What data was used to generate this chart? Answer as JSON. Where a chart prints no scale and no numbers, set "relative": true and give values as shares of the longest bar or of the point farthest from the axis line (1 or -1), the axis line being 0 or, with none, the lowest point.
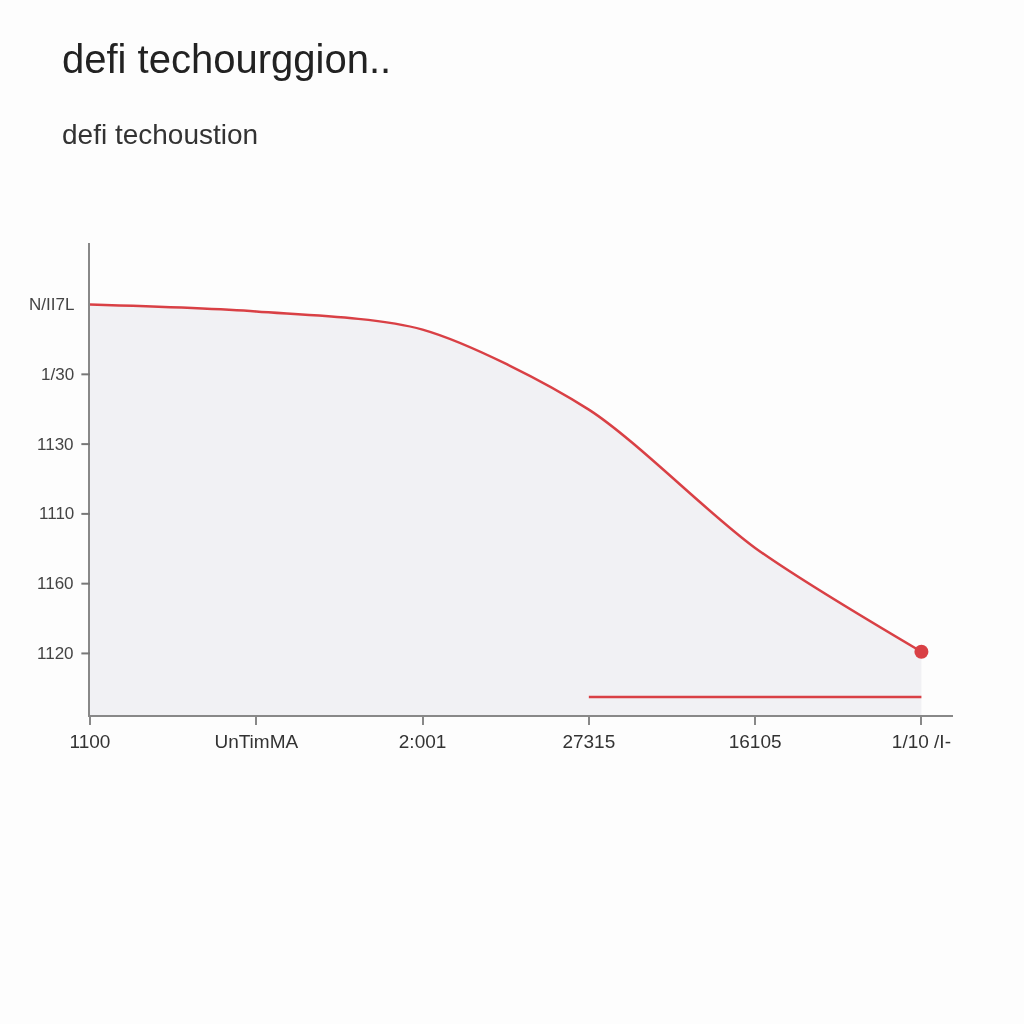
{
  "chart_data": {
    "type": "area",
    "title": "defi techourggion..",
    "subtitle": "defi techoustion",
    "relative": true,
    "categories": [
      "1100",
      "UnTimMA",
      "2:001",
      "27315",
      "16105",
      "1/10 /I-"
    ],
    "annotations": [
      "N/II7L",
      "1/30",
      "1130",
      "1110",
      "1160",
      "1120"
    ],
    "series": [
      {
        "color": "#d94045",
        "marker": "none",
        "values": [
          1.0,
          0.983,
          0.939,
          0.744,
          0.407,
          0.154
        ]
      },
      {
        "type": "scatter",
        "color": "#d94045",
        "marker": "circle",
        "values": [
          null,
          null,
          null,
          null,
          null,
          0.154
        ]
      },
      {
        "type": "line",
        "color": "#d94045",
        "marker": "none",
        "values": [
          null,
          null,
          null,
          0.044,
          0.044,
          0.044
        ]
      }
    ]
  }
}
